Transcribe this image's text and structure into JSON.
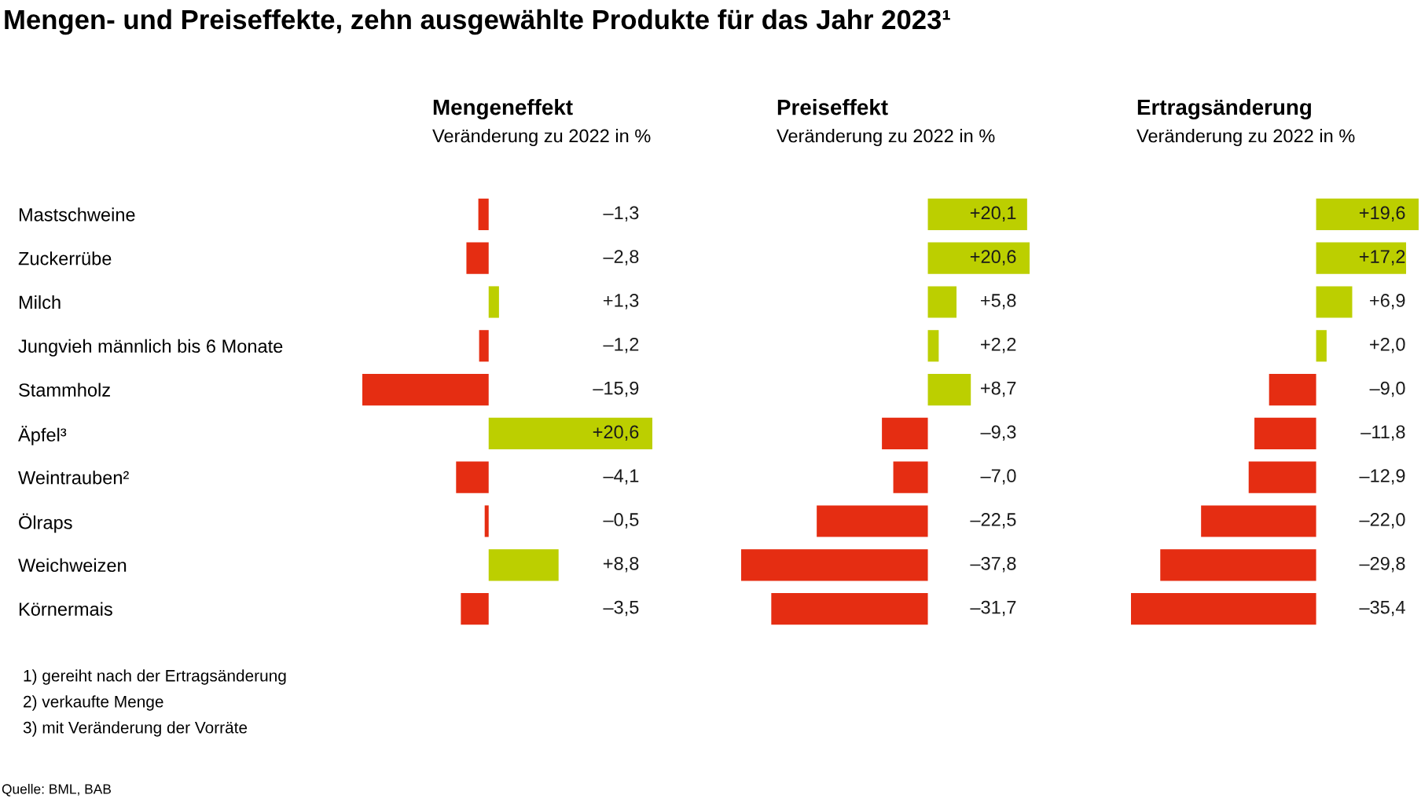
{
  "chart_data": [
    {
      "type": "other",
      "title": "Mengen- und Preiseffekte, zehn ausgewählte Produkte für das Jahr 2023¹",
      "annotations": [
        "1) gereiht nach der Ertragsänderung",
        "2) verkaufte Menge",
        "3) mit Veränderung der Vorräte",
        "Quelle: BML, BAB"
      ]
    },
    {
      "type": "bar",
      "orientation": "horizontal",
      "title": "Mengeneffekt",
      "subtitle": "Veränderung zu 2022 in %",
      "tick_labels": "y",
      "categories": [
        "Mastschweine",
        "Zuckerrübe",
        "Milch",
        "Jungvieh männlich bis 6 Monate",
        "Stammholz",
        "Äpfel³",
        "Weintrauben²",
        "Ölraps",
        "Weichweizen",
        "Körnermais"
      ],
      "values": [
        -1.3,
        -2.8,
        1.3,
        -1.2,
        -15.9,
        20.6,
        -4.1,
        -0.5,
        8.8,
        -3.5
      ],
      "colors": [
        "#e52d12",
        "#e52d12",
        "#bccf00",
        "#e52d12",
        "#e52d12",
        "#bccf00",
        "#e52d12",
        "#e52d12",
        "#bccf00",
        "#e52d12"
      ],
      "value_labels": [
        "–1,3",
        "–2,8",
        "+1,3",
        "–1,2",
        "–15,9",
        "+20,6",
        "–4,1",
        "–0,5",
        "+8,8",
        "–3,5"
      ]
    },
    {
      "type": "bar",
      "orientation": "horizontal",
      "title": "Preiseffekt",
      "subtitle": "Veränderung zu 2022 in %",
      "tick_labels": false,
      "categories": [
        null,
        null,
        null,
        null,
        null,
        null,
        null,
        null,
        null,
        null
      ],
      "values": [
        20.1,
        20.6,
        5.8,
        2.2,
        8.7,
        -9.3,
        -7.0,
        -22.5,
        -37.8,
        -31.7
      ],
      "colors": [
        "#bccf00",
        "#bccf00",
        "#bccf00",
        "#bccf00",
        "#bccf00",
        "#e52d12",
        "#e52d12",
        "#e52d12",
        "#e52d12",
        "#e52d12"
      ],
      "value_labels": [
        "+20,1",
        "+20,6",
        "+5,8",
        "+2,2",
        "+8,7",
        "–9,3",
        "–7,0",
        "–22,5",
        "–37,8",
        "–31,7"
      ]
    },
    {
      "type": "bar",
      "orientation": "horizontal",
      "title": "Ertragsänderung",
      "subtitle": "Veränderung zu 2022 in %",
      "tick_labels": false,
      "categories": [
        null,
        null,
        null,
        null,
        null,
        null,
        null,
        null,
        null,
        null
      ],
      "values": [
        19.6,
        17.2,
        6.9,
        2.0,
        -9.0,
        -11.8,
        -12.9,
        -22.0,
        -29.8,
        -35.4
      ],
      "colors": [
        "#bccf00",
        "#bccf00",
        "#bccf00",
        "#bccf00",
        "#e52d12",
        "#e52d12",
        "#e52d12",
        "#e52d12",
        "#e52d12",
        "#e52d12"
      ],
      "value_labels": [
        "+19,6",
        "+17,2",
        "+6,9",
        "+2,0",
        "–9,0",
        "–11,8",
        "–12,9",
        "–22,0",
        "–29,8",
        "–35,4"
      ]
    }
  ]
}
